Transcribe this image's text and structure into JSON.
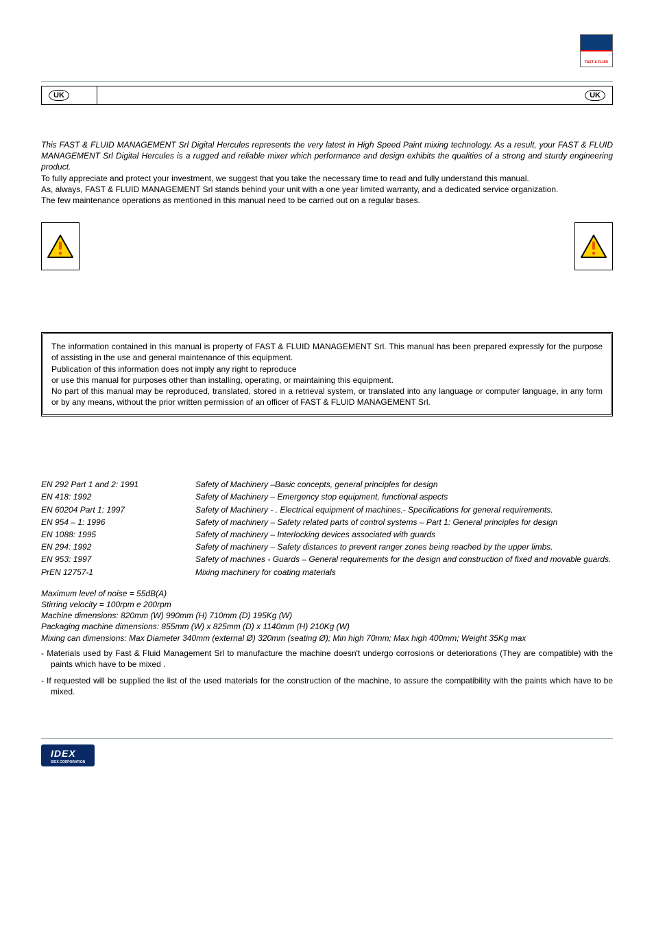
{
  "header": {
    "uk_label": "UK",
    "brand_text": "FAST & FLUID"
  },
  "intro": {
    "p1_italic": "This FAST & FLUID MANAGEMENT Srl Digital Hercules represents the very latest in High Speed Paint mixing technology. As a result, your FAST & FLUID MANAGEMENT  Srl Digital Hercules is a rugged and reliable mixer which performance and design exhibits the qualities of a strong and sturdy engineering product.",
    "p2": "To fully appreciate and protect your investment, we suggest that you take the necessary time to read and fully understand this manual.",
    "p3": "As, always, FAST  & FLUID MANAGEMENT Srl stands behind your unit with a one year limited warranty, and a dedicated service organization.",
    "p4": "The few maintenance operations as mentioned in this manual need to be carried out on a regular bases."
  },
  "proprietary": {
    "p1": "The information contained in this manual is property of  FAST & FLUID MANAGEMENT  Srl. This manual has been prepared expressly for the purpose of assisting in the use and general maintenance of this equipment.",
    "p2": "Publication of this information does not imply any right to reproduce",
    "p3": "or use this manual for purposes other than installing, operating, or maintaining this equipment.",
    "p4": "No part of this manual may be reproduced, translated, stored in a retrieval system, or translated into any language or computer language, in any form or by any means, without the prior written permission of an officer of FAST & FLUID MANAGEMENT  Srl."
  },
  "standards": [
    {
      "code": "EN 292 Part 1 and 2: 1991",
      "desc": "Safety of Machinery –Basic concepts, general principles for design"
    },
    {
      "code": "EN 418: 1992",
      "desc": "Safety of Machinery – Emergency stop equipment, functional aspects"
    },
    {
      "code": "EN 60204 Part 1: 1997",
      "desc": "Safety of Machinery - . Electrical equipment of machines.- Specifications for  general requirements."
    },
    {
      "code": "EN 954 – 1: 1996",
      "desc": "Safety of machinery – Safety related  parts of control systems – Part 1: General principles for design"
    },
    {
      "code": "EN 1088: 1995",
      "desc": "Safety of machinery – Interlocking  devices associated with guards"
    },
    {
      "code": "EN 294: 1992",
      "desc": "Safety of machinery – Safety distances to prevent ranger zones being  reached by the upper limbs."
    },
    {
      "code": "EN 953: 1997",
      "desc": "Safety of machines  - Guards – General requirements for the design and construction of fixed and movable guards."
    },
    {
      "code": "PrEN 12757-1",
      "desc": "Mixing machinery for coating materials"
    }
  ],
  "specs": {
    "noise": "Maximum level of noise  = 55dB(A)",
    "stirring": "Stirring velocity = 100rpm e 200rpm",
    "machine_dim": "Machine dimensions: 820mm (W) 990mm (H) 710mm (D) 195Kg (W)",
    "packaging_dim": "Packaging machine dimensions: 855mm (W) x 825mm (D) x 1140mm (H) 210Kg (W)",
    "can_dim": "Mixing can dimensions: Max Diameter 340mm (external Ø) 320mm (seating Ø); Min high 70mm; Max high 400mm; Weight 35Kg max"
  },
  "notes": {
    "n1": "- Materials used by Fast  & Fluid Management Srl to manufacture the machine doesn't undergo corrosions or deteriorations (They are compatible) with the paints which have to be mixed .",
    "n2": "- If requested will be supplied the list of the used materials for the construction of the machine, to assure the compatibility with the paints which have to be mixed."
  },
  "footer": {
    "idex": "IDEX",
    "idex_sub": "IDEX CORPORATION"
  },
  "style": {
    "warn_fill": "#ffd200",
    "warn_stroke": "#000",
    "warn_glow": "#e85c00"
  }
}
